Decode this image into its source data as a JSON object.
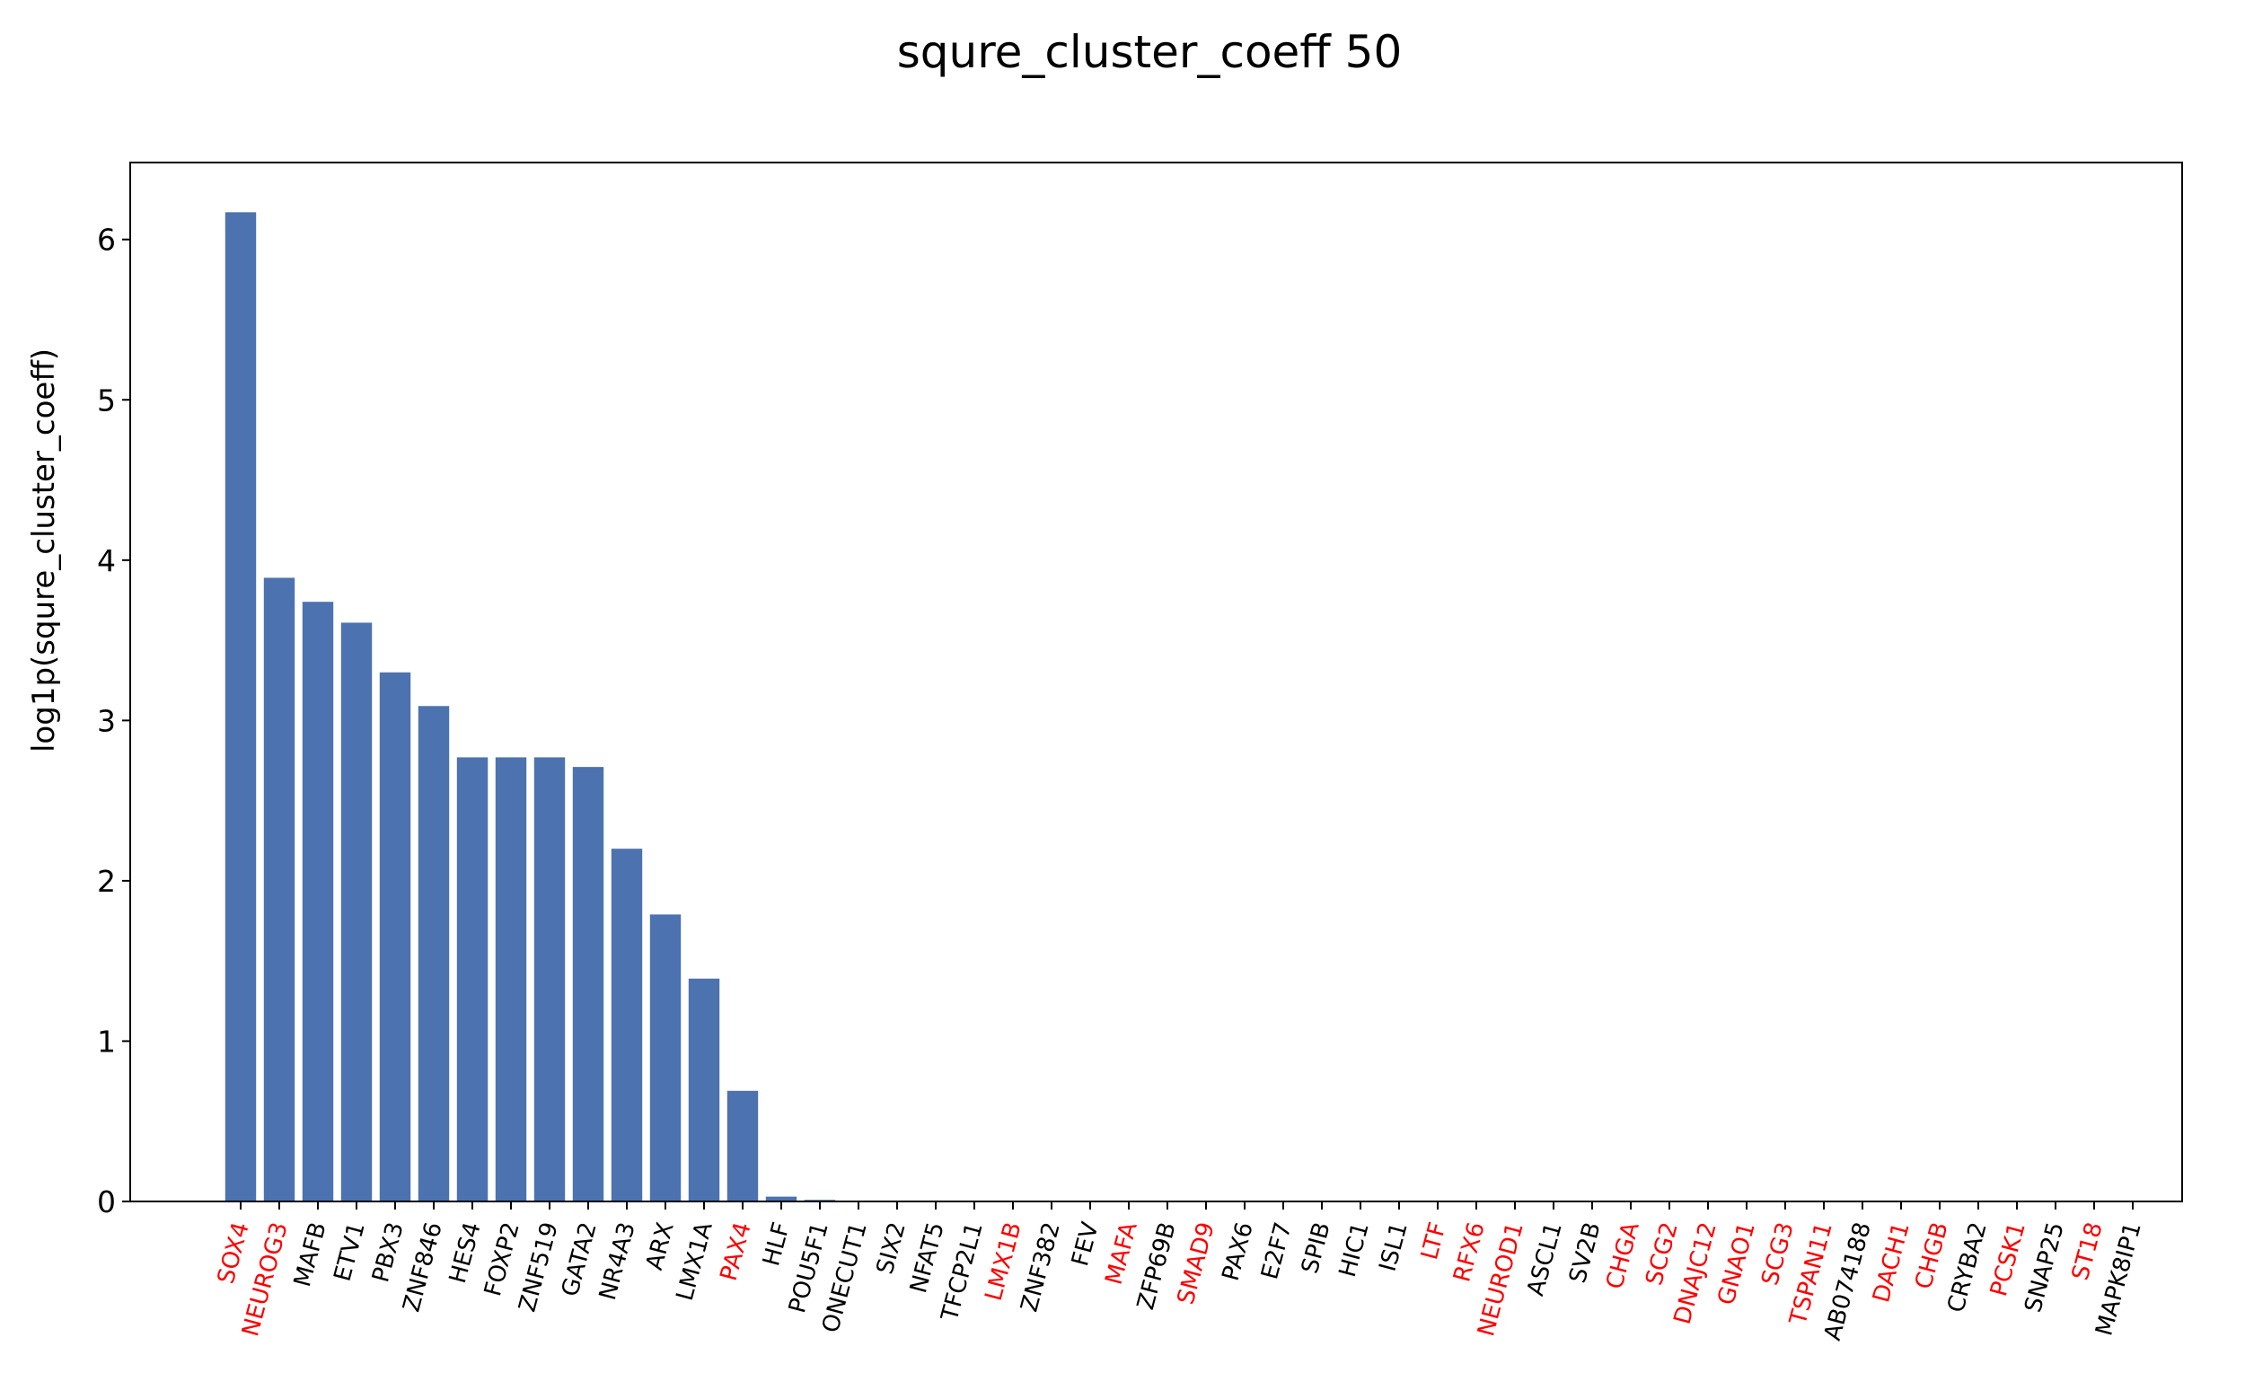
{
  "chart_data": {
    "type": "bar",
    "title": "squre_cluster_coeff 50",
    "xlabel": "",
    "ylabel": "log1p(squre_cluster_coeff)",
    "ylim": [
      0,
      6.48
    ],
    "yticks": [
      "0",
      "1",
      "2",
      "3",
      "4",
      "5",
      "6"
    ],
    "grid": false,
    "bar_color": "#4c72b0",
    "highlight_label_color": "#ff0000",
    "default_label_color": "#000000",
    "categories": [
      "SOX4",
      "NEUROG3",
      "MAFB",
      "ETV1",
      "PBX3",
      "ZNF846",
      "HES4",
      "FOXP2",
      "ZNF519",
      "GATA2",
      "NR4A3",
      "ARX",
      "LMX1A",
      "PAX4",
      "HLF",
      "POU5F1",
      "ONECUT1",
      "SIX2",
      "NFAT5",
      "TFCP2L1",
      "LMX1B",
      "ZNF382",
      "FEV",
      "MAFA",
      "ZFP69B",
      "SMAD9",
      "PAX6",
      "E2F7",
      "SPIB",
      "HIC1",
      "ISL1",
      "LTF",
      "RFX6",
      "NEUROD1",
      "ASCL1",
      "SV2B",
      "CHGA",
      "SCG2",
      "DNAJC12",
      "GNAO1",
      "SCG3",
      "TSPAN11",
      "AB074188",
      "DACH1",
      "CHGB",
      "CRYBA2",
      "PCSK1",
      "SNAP25",
      "ST18",
      "MAPK8IP1"
    ],
    "values": [
      6.17,
      3.89,
      3.74,
      3.61,
      3.3,
      3.09,
      2.77,
      2.77,
      2.77,
      2.71,
      2.2,
      1.79,
      1.39,
      0.69,
      0.03,
      0.01,
      0,
      0,
      0,
      0,
      0,
      0,
      0,
      0,
      0,
      0,
      0,
      0,
      0,
      0,
      0,
      0,
      0,
      0,
      0,
      0,
      0,
      0,
      0,
      0,
      0,
      0,
      0,
      0,
      0,
      0,
      0,
      0,
      0,
      0
    ],
    "highlighted": [
      true,
      true,
      false,
      false,
      false,
      false,
      false,
      false,
      false,
      false,
      false,
      false,
      false,
      true,
      false,
      false,
      false,
      false,
      false,
      false,
      true,
      false,
      false,
      true,
      false,
      true,
      false,
      false,
      false,
      false,
      false,
      true,
      true,
      true,
      false,
      false,
      true,
      true,
      true,
      true,
      true,
      true,
      false,
      true,
      true,
      false,
      true,
      false,
      true,
      false
    ]
  }
}
